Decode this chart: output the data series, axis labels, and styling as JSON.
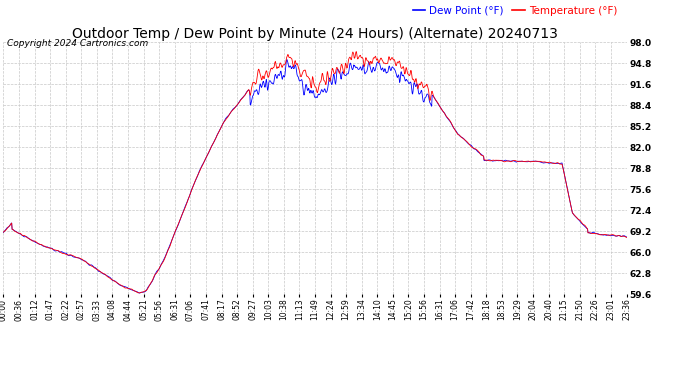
{
  "title": "Outdoor Temp / Dew Point by Minute (24 Hours) (Alternate) 20240713",
  "copyright": "Copyright 2024 Cartronics.com",
  "legend_dew": "Dew Point (°F)",
  "legend_temp": "Temperature (°F)",
  "ylabel_right_ticks": [
    59.6,
    62.8,
    66.0,
    69.2,
    72.4,
    75.6,
    78.8,
    82.0,
    85.2,
    88.4,
    91.6,
    94.8,
    98.0
  ],
  "ymin": 59.6,
  "ymax": 98.0,
  "bg_color": "#ffffff",
  "grid_color": "#c8c8c8",
  "temp_color": "#ff0000",
  "dew_color": "#0000ff",
  "title_fontsize": 10,
  "copyright_fontsize": 6.5,
  "legend_fontsize": 7.5,
  "x_labels": [
    "00:00",
    "00:36",
    "01:12",
    "01:47",
    "02:22",
    "02:57",
    "03:33",
    "04:08",
    "04:44",
    "05:21",
    "05:56",
    "06:31",
    "07:06",
    "07:41",
    "08:17",
    "08:52",
    "09:27",
    "10:03",
    "10:38",
    "11:13",
    "11:49",
    "12:24",
    "12:59",
    "13:34",
    "14:10",
    "14:45",
    "15:20",
    "15:56",
    "16:31",
    "17:06",
    "17:42",
    "18:18",
    "18:53",
    "19:29",
    "20:04",
    "20:40",
    "21:15",
    "21:50",
    "22:26",
    "23:01",
    "23:36"
  ]
}
